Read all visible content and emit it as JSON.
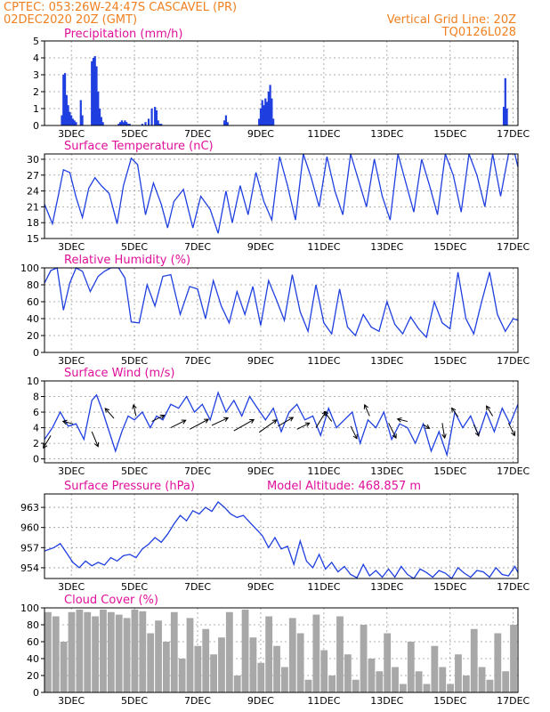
{
  "header": {
    "line1": "CPTEC:   053:26W-24:47S   CASCAVEL (PR)",
    "line2": "02DEC2020 20Z (GMT)",
    "grid_note": "Vertical Grid Line: 20Z",
    "run_id": "TQ0126L028"
  },
  "colors": {
    "title": "#e0109a",
    "header": "#f08020",
    "line": "#1f3fe0",
    "bar": "#1f3fe0",
    "cloud": "#a8a8a8"
  },
  "chart_data": [
    {
      "id": "precip",
      "type": "bar",
      "title": "Precipitation (mm/h)",
      "x_unit": "days since 02DEC2020 20Z",
      "ylim": [
        0,
        5
      ],
      "yticks": [
        0,
        1,
        2,
        3,
        4,
        5
      ],
      "xtick_labels": [
        "3DEC",
        "5DEC",
        "7DEC",
        "9DEC",
        "11DEC",
        "13DEC",
        "15DEC",
        "17DEC"
      ],
      "x": [
        0.55,
        0.6,
        0.65,
        0.7,
        0.75,
        0.8,
        0.85,
        0.9,
        0.95,
        1.0,
        1.15,
        1.2,
        1.5,
        1.55,
        1.6,
        1.65,
        1.7,
        1.75,
        1.8,
        1.85,
        2.35,
        2.4,
        2.45,
        2.5,
        2.55,
        2.6,
        2.65,
        2.7,
        3.1,
        3.2,
        3.3,
        3.4,
        3.5,
        3.55,
        3.6,
        3.65,
        3.7,
        5.7,
        5.75,
        5.8,
        6.8,
        6.85,
        6.9,
        6.95,
        7.0,
        7.05,
        7.1,
        7.15,
        7.2,
        7.25,
        14.55,
        14.6,
        14.65
      ],
      "values": [
        0.6,
        3.0,
        3.1,
        1.8,
        1.2,
        0.8,
        0.6,
        0.4,
        0.3,
        0.2,
        1.5,
        0.6,
        3.8,
        4.0,
        4.1,
        3.5,
        2.0,
        1.0,
        0.5,
        0.2,
        0.1,
        0.2,
        0.3,
        0.2,
        0.3,
        0.2,
        0.1,
        0.1,
        0.1,
        0.2,
        0.4,
        1.0,
        1.1,
        0.9,
        0.3,
        0.1,
        0.1,
        0.3,
        0.6,
        0.2,
        0.4,
        1.0,
        1.5,
        1.2,
        1.6,
        1.4,
        2.0,
        2.4,
        1.6,
        0.4,
        1.1,
        2.8,
        1.0
      ]
    },
    {
      "id": "temp",
      "type": "line",
      "title": "Surface Temperature (nC)",
      "x_unit": "days since 02DEC2020 20Z",
      "ylim": [
        15,
        31
      ],
      "yticks": [
        15,
        18,
        21,
        24,
        27,
        30
      ],
      "xtick_labels": [
        "3DEC",
        "5DEC",
        "7DEC",
        "9DEC",
        "11DEC",
        "13DEC",
        "15DEC",
        "17DEC"
      ],
      "x": [
        0,
        0.25,
        0.45,
        0.6,
        0.8,
        1.0,
        1.2,
        1.4,
        1.6,
        1.8,
        2.05,
        2.3,
        2.5,
        2.75,
        2.95,
        3.2,
        3.45,
        3.7,
        3.9,
        4.1,
        4.4,
        4.7,
        4.95,
        5.25,
        5.5,
        5.75,
        5.95,
        6.2,
        6.45,
        6.7,
        6.95,
        7.2,
        7.45,
        7.7,
        7.95,
        8.2,
        8.45,
        8.7,
        8.95,
        9.2,
        9.45,
        9.7,
        9.95,
        10.2,
        10.45,
        10.7,
        10.95,
        11.2,
        11.45,
        11.7,
        11.95,
        12.2,
        12.45,
        12.7,
        12.95,
        13.2,
        13.45,
        13.7,
        13.95,
        14.2,
        14.45,
        14.7,
        14.9,
        15.0
      ],
      "values": [
        21.5,
        17.8,
        23.5,
        28.0,
        27.5,
        22.8,
        19.0,
        24.5,
        26.5,
        25.0,
        23.5,
        17.8,
        25.0,
        30.2,
        29.0,
        19.5,
        25.5,
        21.5,
        17.0,
        22.0,
        24.3,
        17.0,
        23.0,
        20.5,
        16.0,
        24.0,
        18.0,
        25.0,
        19.5,
        27.5,
        22.0,
        18.5,
        30.5,
        25.0,
        18.5,
        31.0,
        26.5,
        21.0,
        30.5,
        24.0,
        19.5,
        31.0,
        26.0,
        21.0,
        30.0,
        23.0,
        18.5,
        31.0,
        25.5,
        20.0,
        30.0,
        25.0,
        19.5,
        31.0,
        27.0,
        20.0,
        31.0,
        27.0,
        21.0,
        31.0,
        23.0,
        31.0,
        31.0,
        28.5
      ]
    },
    {
      "id": "rh",
      "type": "line",
      "title": "Relative Humidity (%)",
      "x_unit": "days since 02DEC2020 20Z",
      "ylim": [
        0,
        100
      ],
      "yticks": [
        0,
        20,
        40,
        60,
        80,
        100
      ],
      "xtick_labels": [
        "3DEC",
        "5DEC",
        "7DEC",
        "9DEC",
        "11DEC",
        "13DEC",
        "15DEC",
        "17DEC"
      ],
      "x": [
        0,
        0.2,
        0.4,
        0.6,
        0.8,
        1.0,
        1.2,
        1.45,
        1.7,
        1.9,
        2.1,
        2.35,
        2.55,
        2.75,
        3.0,
        3.25,
        3.5,
        3.75,
        4.0,
        4.3,
        4.6,
        4.85,
        5.1,
        5.35,
        5.6,
        5.85,
        6.1,
        6.35,
        6.6,
        6.85,
        7.1,
        7.35,
        7.6,
        7.85,
        8.1,
        8.35,
        8.6,
        8.85,
        9.1,
        9.35,
        9.6,
        9.85,
        10.1,
        10.35,
        10.6,
        10.85,
        11.1,
        11.35,
        11.6,
        11.85,
        12.1,
        12.35,
        12.6,
        12.85,
        13.1,
        13.35,
        13.6,
        13.85,
        14.1,
        14.35,
        14.6,
        14.85,
        15.0
      ],
      "values": [
        82,
        97,
        100,
        50,
        82,
        100,
        96,
        72,
        90,
        96,
        100,
        100,
        88,
        36,
        35,
        80,
        55,
        90,
        92,
        45,
        78,
        75,
        40,
        85,
        55,
        35,
        72,
        45,
        78,
        32,
        85,
        62,
        38,
        92,
        48,
        25,
        80,
        35,
        22,
        75,
        30,
        20,
        45,
        30,
        25,
        60,
        33,
        22,
        42,
        28,
        18,
        60,
        35,
        28,
        95,
        40,
        22,
        60,
        95,
        45,
        25,
        40,
        38
      ]
    },
    {
      "id": "wind",
      "type": "line",
      "title": "Surface Wind (m/s)",
      "x_unit": "days since 02DEC2020 20Z",
      "ylim": [
        -0.5,
        10
      ],
      "yticks": [
        0,
        2,
        4,
        6,
        8,
        10
      ],
      "xtick_labels": [
        "3DEC",
        "5DEC",
        "7DEC",
        "9DEC",
        "11DEC",
        "13DEC",
        "15DEC",
        "17DEC"
      ],
      "x": [
        0,
        0.25,
        0.5,
        0.75,
        1.0,
        1.25,
        1.5,
        1.65,
        1.85,
        2.05,
        2.25,
        2.45,
        2.65,
        2.85,
        3.1,
        3.35,
        3.55,
        3.75,
        4.0,
        4.25,
        4.5,
        4.75,
        5.0,
        5.25,
        5.5,
        5.75,
        6.0,
        6.25,
        6.5,
        6.75,
        7.0,
        7.25,
        7.5,
        7.75,
        8.0,
        8.25,
        8.5,
        8.75,
        9.0,
        9.25,
        9.5,
        9.75,
        10.0,
        10.25,
        10.5,
        10.75,
        11.0,
        11.25,
        11.5,
        11.75,
        12.0,
        12.25,
        12.5,
        12.75,
        13.0,
        13.25,
        13.5,
        13.75,
        14.0,
        14.25,
        14.5,
        14.75,
        15.0
      ],
      "values": [
        2.5,
        4.0,
        6.0,
        4.2,
        4.5,
        2.5,
        7.5,
        8.2,
        6.0,
        3.5,
        1.0,
        3.5,
        5.5,
        5.0,
        6.0,
        4.0,
        5.5,
        5.0,
        7.0,
        6.5,
        8.0,
        6.0,
        7.0,
        5.0,
        8.5,
        6.0,
        7.5,
        5.5,
        8.0,
        6.5,
        5.0,
        6.5,
        3.5,
        6.0,
        7.0,
        5.0,
        5.5,
        3.0,
        6.5,
        4.0,
        5.0,
        6.0,
        2.0,
        5.0,
        4.0,
        6.0,
        2.5,
        4.5,
        4.0,
        2.0,
        4.5,
        1.0,
        3.5,
        0.5,
        6.0,
        4.0,
        5.5,
        3.0,
        6.0,
        3.5,
        6.5,
        4.5,
        7.0
      ]
    },
    {
      "id": "pressure",
      "type": "line",
      "title": "Surface Pressure (hPa)",
      "annotation": "Model Altitude: 468.857  m",
      "x_unit": "days since 02DEC2020 20Z",
      "ylim": [
        952.4,
        965
      ],
      "yticks": [
        954,
        957,
        960,
        963
      ],
      "xtick_labels": [
        "3DEC",
        "5DEC",
        "7DEC",
        "9DEC",
        "11DEC",
        "13DEC",
        "15DEC",
        "17DEC"
      ],
      "x": [
        0,
        0.3,
        0.5,
        0.7,
        0.9,
        1.1,
        1.3,
        1.5,
        1.7,
        1.9,
        2.1,
        2.3,
        2.5,
        2.7,
        2.9,
        3.1,
        3.3,
        3.5,
        3.7,
        3.9,
        4.1,
        4.3,
        4.5,
        4.7,
        4.9,
        5.1,
        5.3,
        5.5,
        5.7,
        5.9,
        6.1,
        6.3,
        6.5,
        6.7,
        6.9,
        7.1,
        7.3,
        7.5,
        7.7,
        7.9,
        8.1,
        8.3,
        8.5,
        8.7,
        8.9,
        9.1,
        9.3,
        9.5,
        9.7,
        9.9,
        10.1,
        10.3,
        10.5,
        10.7,
        10.9,
        11.1,
        11.3,
        11.5,
        11.7,
        11.9,
        12.1,
        12.3,
        12.5,
        12.7,
        12.9,
        13.1,
        13.3,
        13.5,
        13.7,
        13.9,
        14.1,
        14.3,
        14.5,
        14.7,
        14.9,
        15.0
      ],
      "values": [
        956.5,
        957.0,
        957.6,
        956.2,
        954.8,
        954.0,
        955.0,
        954.3,
        954.8,
        954.4,
        955.5,
        955.0,
        955.8,
        956.0,
        955.5,
        956.8,
        957.5,
        958.5,
        957.8,
        959.0,
        960.5,
        961.8,
        961.0,
        962.5,
        962.0,
        963.0,
        962.4,
        963.8,
        963.0,
        962.0,
        961.5,
        961.8,
        960.8,
        959.8,
        958.8,
        957.0,
        958.5,
        956.8,
        957.2,
        954.5,
        958.0,
        955.0,
        954.0,
        956.0,
        953.8,
        954.8,
        953.4,
        954.2,
        953.0,
        952.5,
        954.5,
        952.8,
        953.6,
        952.6,
        953.8,
        952.6,
        954.2,
        953.0,
        952.4,
        953.8,
        953.3,
        952.6,
        953.6,
        953.2,
        952.4,
        954.0,
        953.2,
        952.6,
        953.6,
        953.4,
        952.6,
        954.0,
        953.0,
        952.8,
        954.2,
        953.3
      ]
    },
    {
      "id": "cloud",
      "type": "bar",
      "title": "Cloud Cover (%)",
      "x_unit": "days since 02DEC2020 20Z",
      "ylim": [
        0,
        100
      ],
      "yticks": [
        0,
        20,
        40,
        60,
        80,
        100
      ],
      "xtick_labels": [
        "3DEC",
        "5DEC",
        "7DEC",
        "9DEC",
        "11DEC",
        "13DEC",
        "15DEC",
        "17DEC"
      ],
      "x": [
        0,
        0.25,
        0.5,
        0.75,
        1.0,
        1.25,
        1.5,
        1.75,
        2.0,
        2.25,
        2.5,
        2.75,
        3.0,
        3.25,
        3.5,
        3.75,
        4.0,
        4.25,
        4.5,
        4.75,
        5.0,
        5.25,
        5.5,
        5.75,
        6.0,
        6.25,
        6.5,
        6.75,
        7.0,
        7.25,
        7.5,
        7.75,
        8.0,
        8.25,
        8.5,
        8.75,
        9.0,
        9.25,
        9.5,
        9.75,
        10.0,
        10.25,
        10.5,
        10.75,
        11.0,
        11.25,
        11.5,
        11.75,
        12.0,
        12.25,
        12.5,
        12.75,
        13.0,
        13.25,
        13.5,
        13.75,
        14.0,
        14.25,
        14.5,
        14.75
      ],
      "values": [
        95,
        90,
        60,
        95,
        98,
        95,
        90,
        98,
        95,
        92,
        88,
        98,
        96,
        70,
        85,
        60,
        95,
        40,
        88,
        55,
        75,
        45,
        65,
        95,
        20,
        98,
        65,
        35,
        90,
        55,
        30,
        88,
        70,
        15,
        92,
        50,
        20,
        90,
        45,
        15,
        80,
        40,
        25,
        70,
        30,
        10,
        60,
        25,
        10,
        55,
        30,
        10,
        45,
        20,
        75,
        30,
        15,
        70,
        25,
        80
      ],
      "bar_width": 0.22
    }
  ],
  "wind_vectors": [
    {
      "x": 0.2,
      "y": 3.0,
      "u": -0.6,
      "v": -1.0
    },
    {
      "x": 0.9,
      "y": 4.5,
      "u": -0.8,
      "v": 0.2
    },
    {
      "x": 1.5,
      "y": 3.5,
      "u": 0.5,
      "v": -1.2
    },
    {
      "x": 2.2,
      "y": 5.2,
      "u": -0.7,
      "v": 0.8
    },
    {
      "x": 2.9,
      "y": 5.5,
      "u": -0.2,
      "v": 0.9
    },
    {
      "x": 3.4,
      "y": 4.8,
      "u": 1.0,
      "v": 0.5
    },
    {
      "x": 4.0,
      "y": 4.0,
      "u": 1.2,
      "v": 0.6
    },
    {
      "x": 4.6,
      "y": 3.8,
      "u": 1.5,
      "v": 0.8
    },
    {
      "x": 5.3,
      "y": 4.3,
      "u": 1.3,
      "v": 0.6
    },
    {
      "x": 6.0,
      "y": 3.6,
      "u": 1.6,
      "v": 0.9
    },
    {
      "x": 6.8,
      "y": 3.4,
      "u": 1.4,
      "v": 1.0
    },
    {
      "x": 7.4,
      "y": 4.2,
      "u": 1.2,
      "v": 0.7
    },
    {
      "x": 8.0,
      "y": 3.8,
      "u": 1.0,
      "v": 0.5
    },
    {
      "x": 8.6,
      "y": 4.0,
      "u": 0.8,
      "v": 1.3
    },
    {
      "x": 9.1,
      "y": 4.8,
      "u": -0.6,
      "v": 0.8
    },
    {
      "x": 9.7,
      "y": 4.2,
      "u": 0.5,
      "v": -1.0
    },
    {
      "x": 10.3,
      "y": 5.5,
      "u": -0.4,
      "v": 0.9
    },
    {
      "x": 10.9,
      "y": 4.6,
      "u": 0.6,
      "v": -1.2
    },
    {
      "x": 11.5,
      "y": 4.8,
      "u": -0.8,
      "v": 0.2
    },
    {
      "x": 12.0,
      "y": 4.4,
      "u": 0.5,
      "v": -0.3
    },
    {
      "x": 12.6,
      "y": 4.6,
      "u": 0.2,
      "v": -1.2
    },
    {
      "x": 13.1,
      "y": 5.4,
      "u": -0.5,
      "v": 0.7
    },
    {
      "x": 13.6,
      "y": 4.4,
      "u": 0.4,
      "v": -0.9
    },
    {
      "x": 14.2,
      "y": 5.5,
      "u": -0.5,
      "v": 0.8
    },
    {
      "x": 14.7,
      "y": 4.6,
      "u": 0.5,
      "v": -1.0
    }
  ]
}
